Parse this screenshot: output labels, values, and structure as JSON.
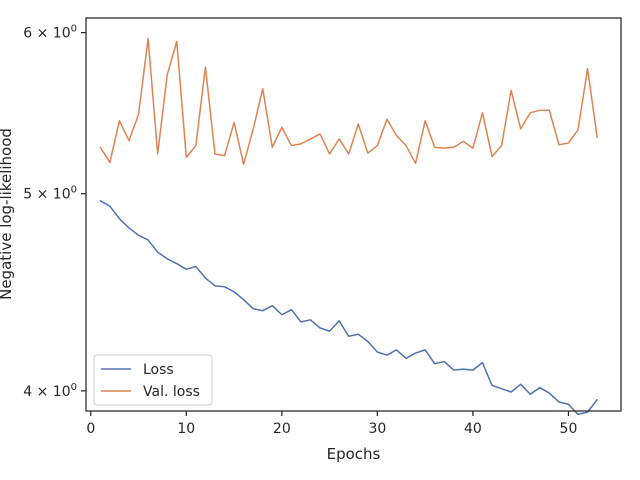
{
  "chart_data": {
    "type": "line",
    "xlabel": "Epochs",
    "ylabel": "Negative log-likelihood",
    "yscale": "log",
    "xlim": [
      -0.5,
      55.5
    ],
    "ylim": [
      3.91,
      6.1
    ],
    "xticks": [
      0,
      10,
      20,
      30,
      40,
      50
    ],
    "yticks": [
      {
        "value": 4,
        "base": "4",
        "times": "×",
        "ten": "10",
        "exp": "0"
      },
      {
        "value": 5,
        "base": "5",
        "times": "×",
        "ten": "10",
        "exp": "0"
      },
      {
        "value": 6,
        "base": "6",
        "times": "×",
        "ten": "10",
        "exp": "0"
      }
    ],
    "grid": false,
    "legend_position": "lower-left",
    "x": [
      1,
      2,
      3,
      4,
      5,
      6,
      7,
      8,
      9,
      10,
      11,
      12,
      13,
      14,
      15,
      16,
      17,
      18,
      19,
      20,
      21,
      22,
      23,
      24,
      25,
      26,
      27,
      28,
      29,
      30,
      31,
      32,
      33,
      34,
      35,
      36,
      37,
      38,
      39,
      40,
      41,
      42,
      43,
      44,
      45,
      46,
      47,
      48,
      49,
      50,
      51,
      52,
      53
    ],
    "series": [
      {
        "name": "Loss",
        "color": "#4c72b0",
        "values": [
          4.96,
          4.93,
          4.86,
          4.81,
          4.77,
          4.745,
          4.68,
          4.645,
          4.62,
          4.59,
          4.605,
          4.545,
          4.505,
          4.5,
          4.475,
          4.435,
          4.39,
          4.38,
          4.405,
          4.36,
          4.385,
          4.325,
          4.335,
          4.295,
          4.28,
          4.33,
          4.255,
          4.265,
          4.23,
          4.18,
          4.165,
          4.19,
          4.15,
          4.175,
          4.19,
          4.125,
          4.135,
          4.095,
          4.1,
          4.095,
          4.13,
          4.025,
          4.01,
          3.995,
          4.03,
          3.985,
          4.015,
          3.99,
          3.95,
          3.94,
          3.895,
          3.905,
          3.96
        ]
      },
      {
        "name": "Val. loss",
        "color": "#dd8452",
        "values": [
          5.27,
          5.18,
          5.43,
          5.31,
          5.47,
          5.96,
          5.23,
          5.72,
          5.94,
          5.21,
          5.28,
          5.77,
          5.23,
          5.22,
          5.42,
          5.17,
          5.38,
          5.63,
          5.27,
          5.39,
          5.28,
          5.29,
          5.32,
          5.35,
          5.23,
          5.32,
          5.23,
          5.41,
          5.235,
          5.28,
          5.44,
          5.34,
          5.28,
          5.175,
          5.43,
          5.27,
          5.265,
          5.27,
          5.305,
          5.265,
          5.48,
          5.215,
          5.28,
          5.62,
          5.38,
          5.48,
          5.495,
          5.495,
          5.285,
          5.295,
          5.375,
          5.76,
          5.33
        ]
      }
    ]
  }
}
